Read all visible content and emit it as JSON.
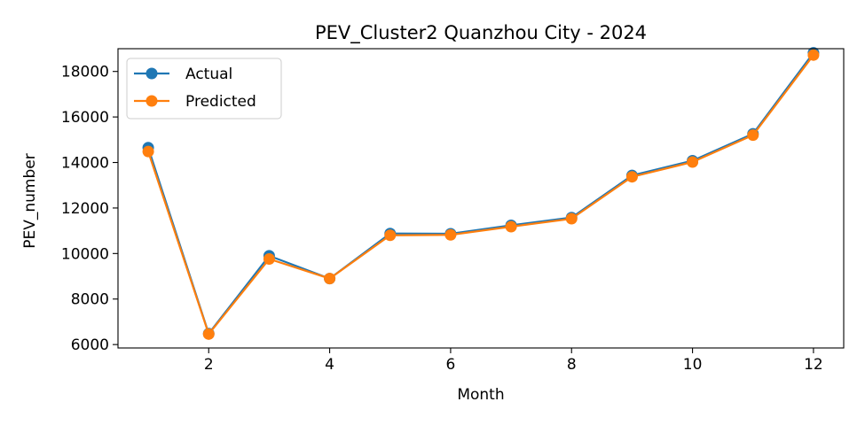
{
  "chart_data": {
    "type": "line",
    "title": "PEV_Cluster2 Quanzhou City - 2024",
    "xlabel": "Month",
    "ylabel": "PEV_number",
    "xlim": [
      0.5,
      12.5
    ],
    "ylim": [
      5850,
      19000
    ],
    "xticks": [
      2,
      4,
      6,
      8,
      10,
      12
    ],
    "yticks": [
      6000,
      8000,
      10000,
      12000,
      14000,
      16000,
      18000
    ],
    "grid": false,
    "legend": "top-left",
    "x": [
      1,
      2,
      3,
      4,
      5,
      6,
      7,
      8,
      9,
      10,
      11,
      12
    ],
    "series": [
      {
        "name": "Actual",
        "color": "#1f77b4",
        "values": [
          14650,
          6480,
          9900,
          8900,
          10880,
          10870,
          11240,
          11580,
          13430,
          14080,
          15260,
          18820
        ]
      },
      {
        "name": "Predicted",
        "color": "#ff7f0e",
        "values": [
          14480,
          6460,
          9760,
          8900,
          10800,
          10820,
          11180,
          11530,
          13370,
          14020,
          15200,
          18720
        ]
      }
    ]
  }
}
